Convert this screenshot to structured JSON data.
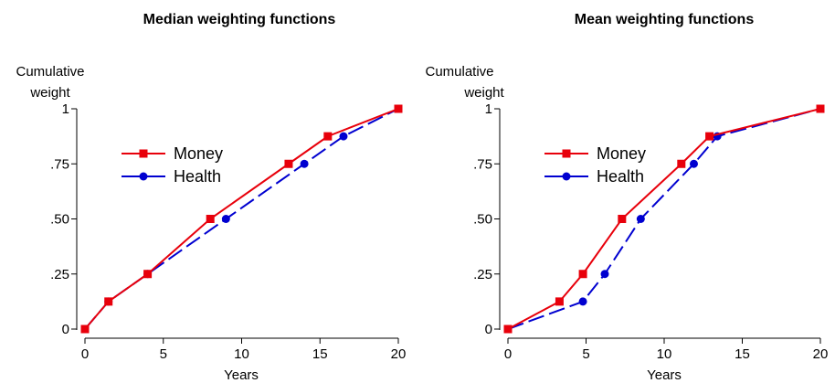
{
  "colors": {
    "money": "#e8000b",
    "health": "#0000d0"
  },
  "chart_data": [
    {
      "type": "line",
      "title": "Median weighting functions",
      "xlabel": "Years",
      "ylabel": "Cumulative weight",
      "ylabel_lines": [
        "Cumulative",
        "weight"
      ],
      "xlim": [
        0,
        20
      ],
      "ylim": [
        0,
        1
      ],
      "xticks": [
        0,
        5,
        10,
        15,
        20
      ],
      "xtick_labels": [
        "0",
        "5",
        "10",
        "15",
        "20"
      ],
      "yticks": [
        0,
        0.25,
        0.5,
        0.75,
        1
      ],
      "ytick_labels": [
        "0",
        ".25",
        ".50",
        ".75",
        "1"
      ],
      "grid": false,
      "legend": "upper-left",
      "series": [
        {
          "name": "Money",
          "marker": "square",
          "dash": "solid",
          "color": "#e8000b",
          "x": [
            0,
            1.5,
            4,
            8,
            13,
            15.5,
            20
          ],
          "y": [
            0,
            0.125,
            0.25,
            0.5,
            0.75,
            0.875,
            1
          ]
        },
        {
          "name": "Health",
          "marker": "circle",
          "dash": "dashed",
          "color": "#0000d0",
          "x": [
            0,
            1.5,
            4,
            9,
            14,
            16.5,
            20
          ],
          "y": [
            0,
            0.125,
            0.25,
            0.5,
            0.75,
            0.875,
            1
          ]
        }
      ]
    },
    {
      "type": "line",
      "title": "Mean weighting functions",
      "xlabel": "Years",
      "ylabel": "Cumulative weight",
      "ylabel_lines": [
        "Cumulative",
        "weight"
      ],
      "xlim": [
        0,
        20
      ],
      "ylim": [
        0,
        1
      ],
      "xticks": [
        0,
        5,
        10,
        15,
        20
      ],
      "xtick_labels": [
        "0",
        "5",
        "10",
        "15",
        "20"
      ],
      "yticks": [
        0,
        0.25,
        0.5,
        0.75,
        1
      ],
      "ytick_labels": [
        "0",
        ".25",
        ".50",
        ".75",
        "1"
      ],
      "grid": false,
      "legend": "upper-left",
      "series": [
        {
          "name": "Money",
          "marker": "square",
          "dash": "solid",
          "color": "#e8000b",
          "x": [
            0,
            3.3,
            4.8,
            7.3,
            11.1,
            12.9,
            20
          ],
          "y": [
            0,
            0.125,
            0.25,
            0.5,
            0.75,
            0.875,
            1
          ]
        },
        {
          "name": "Health",
          "marker": "circle",
          "dash": "dashed",
          "color": "#0000d0",
          "x": [
            0,
            4.8,
            6.2,
            8.5,
            11.9,
            13.4,
            20
          ],
          "y": [
            0,
            0.125,
            0.25,
            0.5,
            0.75,
            0.875,
            1
          ]
        }
      ]
    }
  ]
}
